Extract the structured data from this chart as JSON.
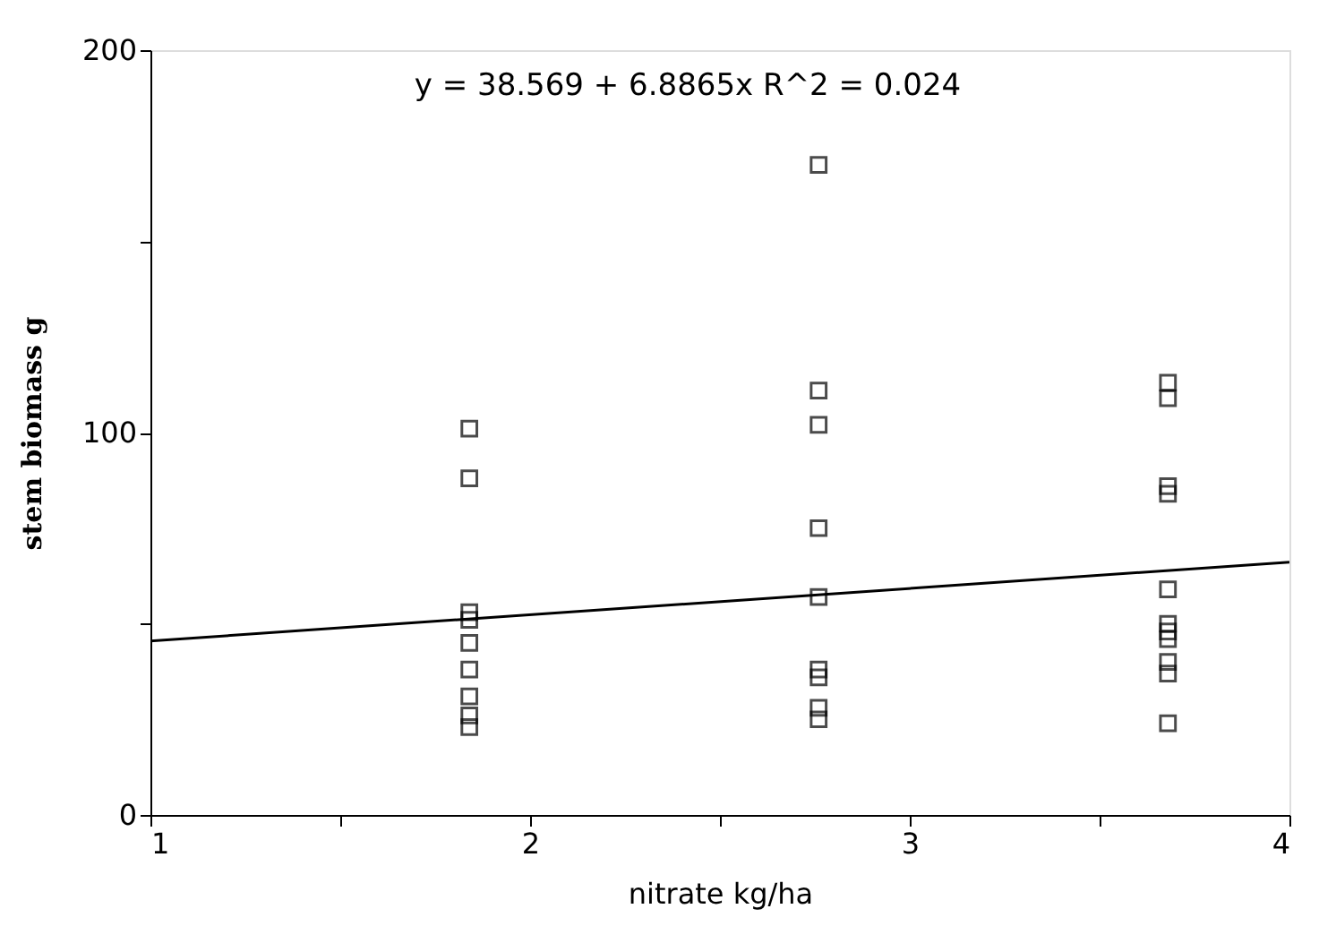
{
  "chart_data": {
    "type": "scatter",
    "xlabel": "nitrate  kg/ha",
    "ylabel": "stem biomass g",
    "marker": "square",
    "grid": false,
    "legend": false,
    "xlim": [
      1,
      4
    ],
    "xticks": [
      1,
      {
        "value": 1.5,
        "label": null
      },
      2,
      {
        "value": 2.5,
        "label": null
      },
      3,
      {
        "value": 3.5,
        "label": null
      },
      4
    ],
    "ylim": [
      0,
      200
    ],
    "yticks": [
      0,
      {
        "value": 50,
        "label": null
      },
      100,
      {
        "value": 150,
        "label": null
      },
      200
    ],
    "annotations": [
      "y = 38.569 + 6.8865x   R^2 = 0.024"
    ],
    "series": [
      {
        "color": "#000000",
        "x": [
          1.84,
          1.84,
          1.84,
          1.84,
          1.84,
          1.84,
          1.84,
          1.84,
          1.84,
          2.76,
          2.76,
          2.76,
          2.76,
          2.76,
          2.76,
          2.76,
          2.76,
          2.76,
          3.68,
          3.68,
          3.68,
          3.68,
          3.68,
          3.68,
          3.68,
          3.68,
          3.68,
          3.68,
          3.68
        ],
        "values": [
          101,
          88,
          53,
          51,
          45,
          38,
          31,
          26,
          23,
          170,
          111,
          102,
          75,
          57,
          38,
          36,
          28,
          25,
          113,
          109,
          86,
          84,
          59,
          50,
          48,
          46,
          40,
          37,
          24
        ]
      },
      {
        "type": "line",
        "color": "#000000",
        "marker": "none",
        "line_style": "solid",
        "x": [
          1,
          4
        ],
        "values": [
          45.5,
          66.1
        ]
      }
    ]
  }
}
